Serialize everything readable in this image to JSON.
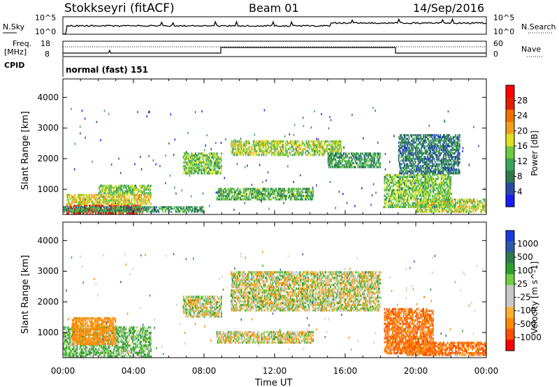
{
  "header": {
    "title": "Stokkseyri (fitACF)",
    "beam": "Beam 01",
    "date": "14/Sep/2016"
  },
  "panels": {
    "nsky": {
      "label": "N.Sky",
      "left_ticks": [
        "10^5",
        "10^0"
      ]
    },
    "nsearch": {
      "label": "N.Search",
      "right_ticks": [
        "10^5",
        "10^0"
      ]
    },
    "freq": {
      "label_line1": "Freq.",
      "label_line2": "[MHz]",
      "left_ticks": [
        "18",
        "8"
      ]
    },
    "nave": {
      "label": "Nave",
      "right_ticks": [
        "60",
        "0"
      ]
    },
    "cpid": {
      "label": "CPID",
      "value": "normal (fast) 151"
    }
  },
  "colors": {
    "power": [
      "#1a1aff",
      "#2a4aa8",
      "#2e7a4a",
      "#3aa65a",
      "#6ccc3c",
      "#e0e020",
      "#f0a020",
      "#f07000",
      "#e02000",
      "#ff0000"
    ],
    "velocity": [
      "#ff0000",
      "#ff5000",
      "#ff8c00",
      "#ffb030",
      "#c8c8c8",
      "#c8c8c8",
      "#70d040",
      "#2aa02a",
      "#2e7a4a",
      "#2a5aa8",
      "#1a3ae0"
    ]
  },
  "chart_data": [
    {
      "type": "heatmap",
      "title": "Power",
      "ylabel": "Slant Range [km]",
      "xlabel": "",
      "xlim": [
        "00:00",
        "24:00"
      ],
      "ylim": [
        180,
        4600
      ],
      "x_ticks": [
        "00:00",
        "04:00",
        "08:00",
        "12:00",
        "16:00",
        "20:00",
        "00:00"
      ],
      "y_ticks": [
        1000,
        2000,
        3000,
        4000
      ],
      "colorbar": {
        "label": "Power [dB]",
        "range": [
          0,
          32
        ],
        "ticks": [
          4,
          8,
          12,
          16,
          20,
          24,
          28
        ]
      },
      "regions": [
        {
          "t": [
            0.2,
            4.5
          ],
          "r": [
            200,
            500
          ],
          "power": 28
        },
        {
          "t": [
            0.2,
            5.0
          ],
          "r": [
            500,
            850
          ],
          "power": 18
        },
        {
          "t": [
            2.0,
            5.0
          ],
          "r": [
            850,
            1150
          ],
          "power": 14
        },
        {
          "t": [
            0.0,
            8.0
          ],
          "r": [
            250,
            450
          ],
          "power": 10
        },
        {
          "t": [
            6.8,
            9.0
          ],
          "r": [
            1500,
            2200
          ],
          "power": 14
        },
        {
          "t": [
            8.7,
            14.2
          ],
          "r": [
            650,
            1050
          ],
          "power": 12
        },
        {
          "t": [
            9.5,
            15.8
          ],
          "r": [
            2100,
            2600
          ],
          "power": 16
        },
        {
          "t": [
            15.0,
            18.0
          ],
          "r": [
            1700,
            2200
          ],
          "power": 10
        },
        {
          "t": [
            18.2,
            22.0
          ],
          "r": [
            400,
            1500
          ],
          "power": 14
        },
        {
          "t": [
            19.0,
            22.5
          ],
          "r": [
            1500,
            2800
          ],
          "power": 8
        },
        {
          "t": [
            20.0,
            24.0
          ],
          "r": [
            250,
            700
          ],
          "power": 16
        }
      ]
    },
    {
      "type": "heatmap",
      "title": "Velocity",
      "ylabel": "Slant Range [km]",
      "xlabel": "Time UT",
      "xlim": [
        "00:00",
        "24:00"
      ],
      "ylim": [
        180,
        4600
      ],
      "x_ticks": [
        "00:00",
        "04:00",
        "08:00",
        "12:00",
        "16:00",
        "20:00",
        "00:00"
      ],
      "y_ticks": [
        1000,
        2000,
        3000,
        4000
      ],
      "colorbar": {
        "label": "Velocity [m s^-1]",
        "ticks": [
          "1000",
          "500",
          "100",
          "25",
          "-25",
          "-100",
          "-500",
          "-1000"
        ]
      },
      "regions": [
        {
          "t": [
            0.0,
            5.0
          ],
          "r": [
            200,
            1200
          ],
          "velocity": 60
        },
        {
          "t": [
            0.5,
            3.0
          ],
          "r": [
            600,
            1500
          ],
          "velocity": -200
        },
        {
          "t": [
            6.8,
            9.0
          ],
          "r": [
            1500,
            2200
          ],
          "velocity": 0
        },
        {
          "t": [
            8.7,
            14.2
          ],
          "r": [
            650,
            1050
          ],
          "velocity": 0
        },
        {
          "t": [
            9.5,
            18.0
          ],
          "r": [
            1700,
            3000
          ],
          "velocity": 0
        },
        {
          "t": [
            18.2,
            21.0
          ],
          "r": [
            300,
            1800
          ],
          "velocity": -300
        },
        {
          "t": [
            19.5,
            24.0
          ],
          "r": [
            250,
            700
          ],
          "velocity": -300
        }
      ]
    }
  ]
}
